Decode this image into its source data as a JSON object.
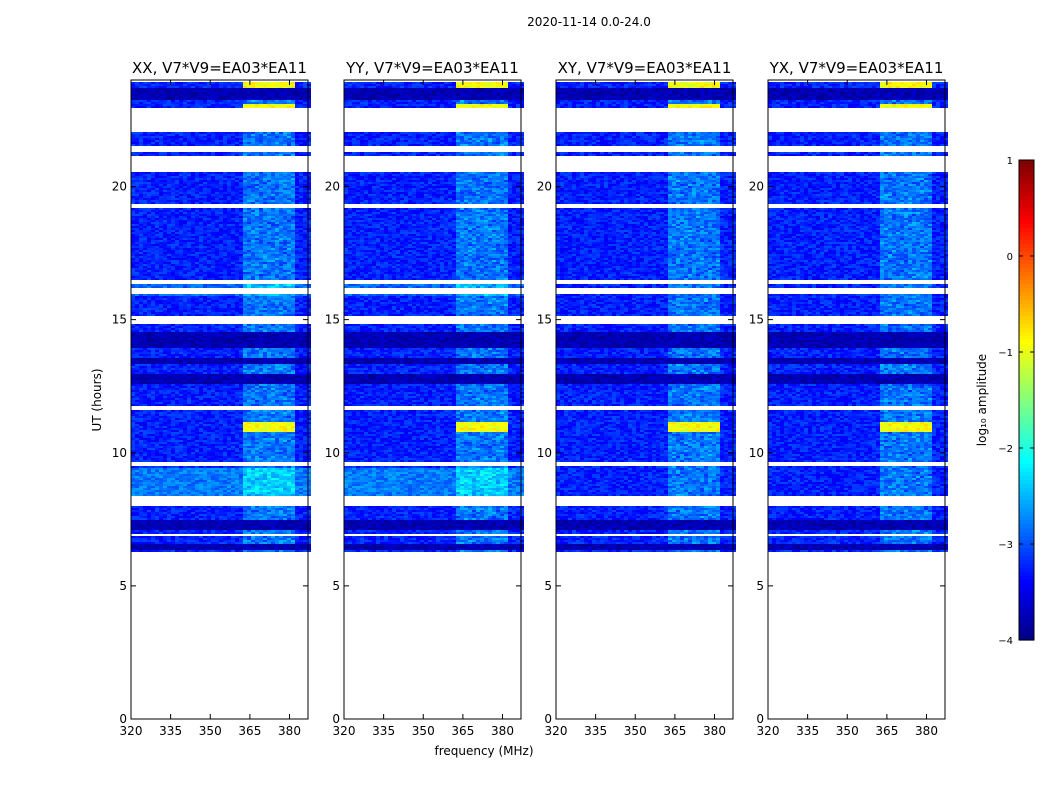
{
  "figure": {
    "suptitle": "2020-11-14 0.0-24.0",
    "xlabel": "frequency (MHz)",
    "ylabel": "UT (hours)",
    "colorbar_label": "log₁₀ amplitude",
    "colorbar_ticks": [
      "1",
      "0",
      "−1",
      "−2",
      "−3",
      "−4"
    ],
    "colorbar_range": [
      -4,
      1
    ],
    "colormap": "jet"
  },
  "chart_data": {
    "type": "heatmap",
    "xlabel": "frequency (MHz)",
    "ylabel": "UT (hours)",
    "xlim": [
      320,
      387
    ],
    "ylim": [
      0,
      24
    ],
    "xticks": [
      320,
      335,
      350,
      365,
      380
    ],
    "yticks": [
      0,
      5,
      10,
      15,
      20
    ],
    "zlabel": "log10 amplitude",
    "zlim": [
      -4,
      1
    ],
    "panels": [
      {
        "title": "XX, V7*V9=EA03*EA11",
        "cross": false
      },
      {
        "title": "YY, V7*V9=EA03*EA11",
        "cross": false
      },
      {
        "title": "XY, V7*V9=EA03*EA11",
        "cross": true
      },
      {
        "title": "YX, V7*V9=EA03*EA11",
        "cross": true
      }
    ],
    "data_start_ut": 6.3,
    "blank_rows_ut": [
      [
        22.6,
        23.0
      ],
      [
        22.1,
        22.6
      ],
      [
        21.35,
        21.55
      ],
      [
        20.55,
        21.2
      ],
      [
        19.2,
        19.35
      ],
      [
        16.35,
        16.55
      ],
      [
        16.0,
        16.2
      ],
      [
        14.9,
        15.2
      ],
      [
        11.65,
        11.8
      ],
      [
        9.55,
        9.7
      ],
      [
        8.05,
        8.4
      ],
      [
        6.9,
        7.0
      ]
    ],
    "dark_rows_ut": [
      [
        23.3,
        23.7
      ],
      [
        14.0,
        14.6
      ],
      [
        12.6,
        13.0
      ],
      [
        13.4,
        13.6
      ],
      [
        7.1,
        7.5
      ],
      [
        6.4,
        6.6
      ]
    ],
    "rfi_band_mhz": [
      361,
      381
    ],
    "rfi_hotspots_ut": [
      [
        22.8,
        23.1
      ],
      [
        23.7,
        23.95
      ],
      [
        10.85,
        11.2
      ]
    ]
  }
}
